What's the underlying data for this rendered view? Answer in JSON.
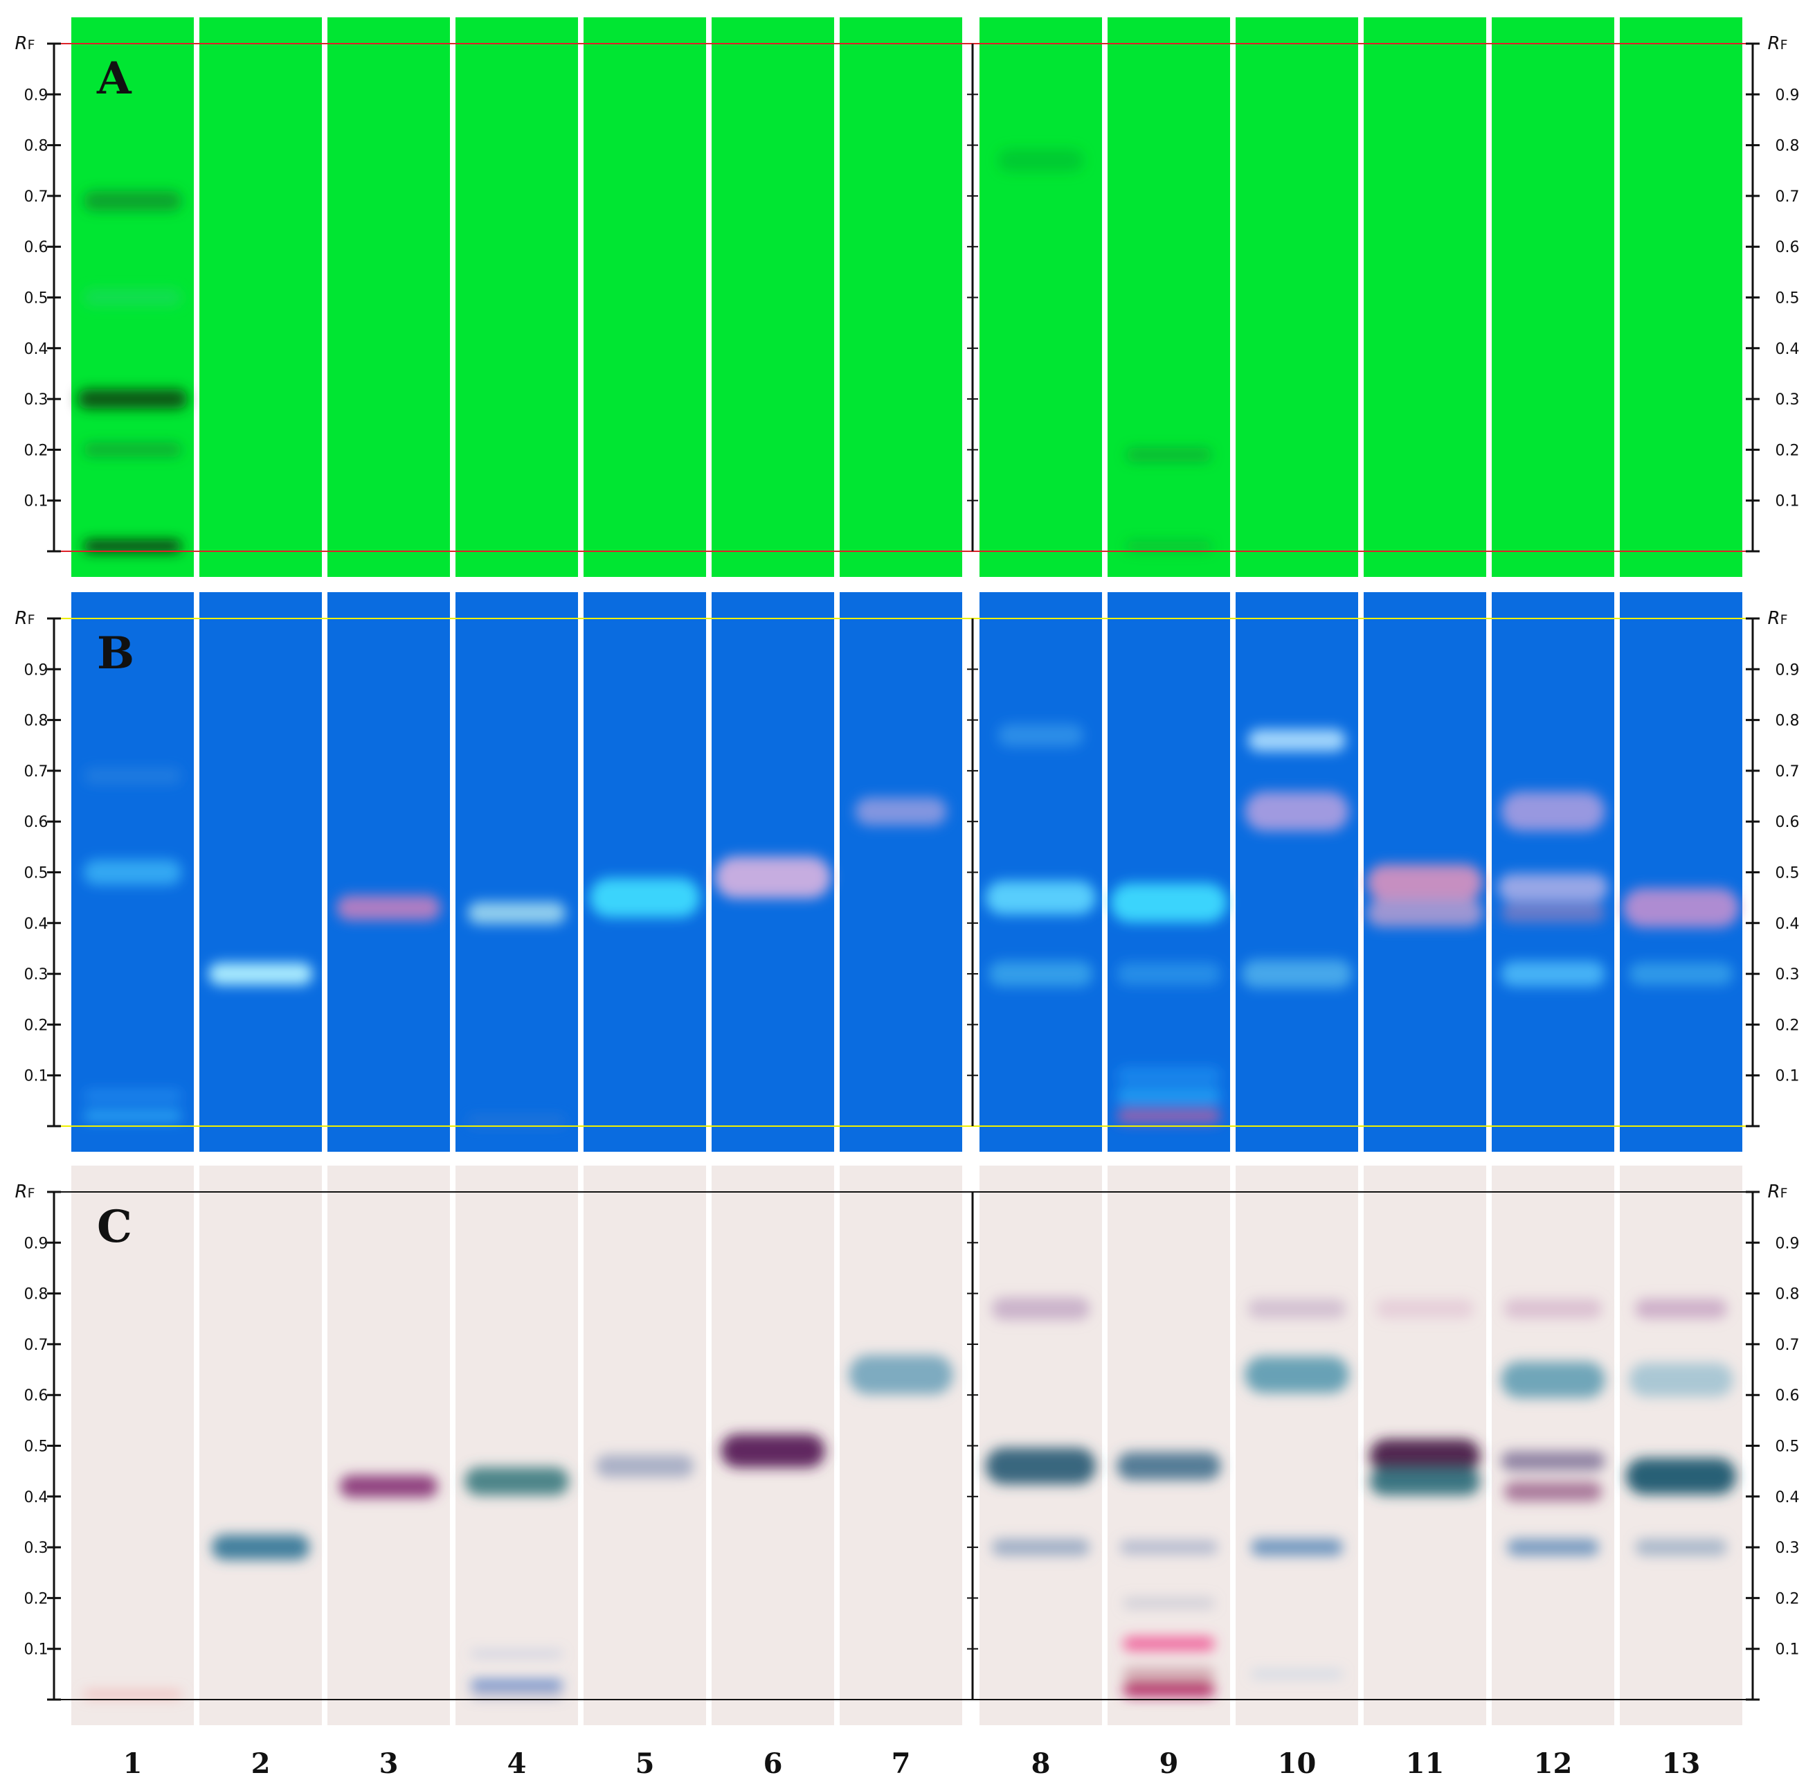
{
  "figure": {
    "lanes": [
      "1",
      "2",
      "3",
      "4",
      "5",
      "6",
      "7",
      "8",
      "9",
      "10",
      "11",
      "12",
      "13"
    ],
    "axis": {
      "title_main": "R",
      "title_sub": "F",
      "ticks": [
        "0.9",
        "0.8",
        "0.7",
        "0.6",
        "0.5",
        "0.4",
        "0.3",
        "0.2",
        "0.1"
      ]
    },
    "panels": [
      {
        "letter": "A",
        "background": "#00e632",
        "line_color": "#e0202a",
        "bands": [
          {
            "lane": 1,
            "rf": 0.01,
            "color": "#0a2a0a",
            "opacity": 0.9,
            "w": 0.8,
            "h": 0.022
          },
          {
            "lane": 1,
            "rf": 0.3,
            "color": "#0a3a0a",
            "opacity": 0.85,
            "w": 0.9,
            "h": 0.035
          },
          {
            "lane": 1,
            "rf": 0.2,
            "color": "#1a7a30",
            "opacity": 0.5,
            "w": 0.8,
            "h": 0.025
          },
          {
            "lane": 1,
            "rf": 0.5,
            "color": "#30d080",
            "opacity": 0.4,
            "w": 0.8,
            "h": 0.03
          },
          {
            "lane": 1,
            "rf": 0.69,
            "color": "#1a6a2a",
            "opacity": 0.55,
            "w": 0.8,
            "h": 0.035
          },
          {
            "lane": 8,
            "rf": 0.77,
            "color": "#10a030",
            "opacity": 0.4,
            "w": 0.7,
            "h": 0.04
          },
          {
            "lane": 9,
            "rf": 0.19,
            "color": "#108030",
            "opacity": 0.45,
            "w": 0.7,
            "h": 0.025
          },
          {
            "lane": 9,
            "rf": 0.01,
            "color": "#108030",
            "opacity": 0.35,
            "w": 0.7,
            "h": 0.02
          }
        ]
      },
      {
        "letter": "B",
        "background": "#0a6ce0",
        "line_color": "#f0f000",
        "bands": [
          {
            "lane": 1,
            "rf": 0.02,
            "color": "#40c8ff",
            "opacity": 0.6,
            "w": 0.8,
            "h": 0.02
          },
          {
            "lane": 1,
            "rf": 0.06,
            "color": "#40b0ff",
            "opacity": 0.4,
            "w": 0.8,
            "h": 0.02
          },
          {
            "lane": 1,
            "rf": 0.5,
            "color": "#50d0ff",
            "opacity": 0.6,
            "w": 0.8,
            "h": 0.045
          },
          {
            "lane": 1,
            "rf": 0.69,
            "color": "#4090e0",
            "opacity": 0.4,
            "w": 0.8,
            "h": 0.03
          },
          {
            "lane": 2,
            "rf": 0.3,
            "color": "#b0f0ff",
            "opacity": 0.95,
            "w": 0.85,
            "h": 0.04
          },
          {
            "lane": 3,
            "rf": 0.43,
            "color": "#c080c0",
            "opacity": 0.9,
            "w": 0.85,
            "h": 0.045
          },
          {
            "lane": 4,
            "rf": 0.42,
            "color": "#a0d8f0",
            "opacity": 0.9,
            "w": 0.8,
            "h": 0.04
          },
          {
            "lane": 4,
            "rf": 0.01,
            "color": "#4080d0",
            "opacity": 0.4,
            "w": 0.8,
            "h": 0.02
          },
          {
            "lane": 5,
            "rf": 0.45,
            "color": "#40e0ff",
            "opacity": 0.9,
            "w": 0.9,
            "h": 0.07
          },
          {
            "lane": 6,
            "rf": 0.49,
            "color": "#d0b0e0",
            "opacity": 0.95,
            "w": 0.95,
            "h": 0.075
          },
          {
            "lane": 7,
            "rf": 0.62,
            "color": "#a0a0e0",
            "opacity": 0.8,
            "w": 0.75,
            "h": 0.05
          },
          {
            "lane": 8,
            "rf": 0.45,
            "color": "#60d8ff",
            "opacity": 0.9,
            "w": 0.9,
            "h": 0.06
          },
          {
            "lane": 8,
            "rf": 0.3,
            "color": "#50c0f0",
            "opacity": 0.6,
            "w": 0.85,
            "h": 0.045
          },
          {
            "lane": 8,
            "rf": 0.77,
            "color": "#50b0f0",
            "opacity": 0.5,
            "w": 0.7,
            "h": 0.04
          },
          {
            "lane": 9,
            "rf": 0.44,
            "color": "#40e0ff",
            "opacity": 0.9,
            "w": 0.95,
            "h": 0.07
          },
          {
            "lane": 9,
            "rf": 0.3,
            "color": "#40b0f0",
            "opacity": 0.5,
            "w": 0.85,
            "h": 0.04
          },
          {
            "lane": 9,
            "rf": 0.02,
            "color": "#c060a0",
            "opacity": 0.8,
            "w": 0.85,
            "h": 0.025
          },
          {
            "lane": 9,
            "rf": 0.06,
            "color": "#30c0ff",
            "opacity": 0.6,
            "w": 0.85,
            "h": 0.025
          },
          {
            "lane": 9,
            "rf": 0.1,
            "color": "#30b0ff",
            "opacity": 0.4,
            "w": 0.85,
            "h": 0.03
          },
          {
            "lane": 10,
            "rf": 0.76,
            "color": "#b0e0ff",
            "opacity": 0.9,
            "w": 0.8,
            "h": 0.04
          },
          {
            "lane": 10,
            "rf": 0.62,
            "color": "#b0a0e0",
            "opacity": 0.9,
            "w": 0.85,
            "h": 0.07
          },
          {
            "lane": 10,
            "rf": 0.3,
            "color": "#60c0f0",
            "opacity": 0.7,
            "w": 0.9,
            "h": 0.05
          },
          {
            "lane": 11,
            "rf": 0.48,
            "color": "#d090c0",
            "opacity": 0.95,
            "w": 0.95,
            "h": 0.065
          },
          {
            "lane": 11,
            "rf": 0.42,
            "color": "#c0a0d0",
            "opacity": 0.8,
            "w": 0.95,
            "h": 0.05
          },
          {
            "lane": 12,
            "rf": 0.62,
            "color": "#b0a0e0",
            "opacity": 0.85,
            "w": 0.85,
            "h": 0.07
          },
          {
            "lane": 12,
            "rf": 0.47,
            "color": "#b0b0e8",
            "opacity": 0.85,
            "w": 0.9,
            "h": 0.05
          },
          {
            "lane": 12,
            "rf": 0.42,
            "color": "#9080c0",
            "opacity": 0.7,
            "w": 0.85,
            "h": 0.035
          },
          {
            "lane": 12,
            "rf": 0.3,
            "color": "#60d0ff",
            "opacity": 0.7,
            "w": 0.85,
            "h": 0.045
          },
          {
            "lane": 13,
            "rf": 0.43,
            "color": "#c090d0",
            "opacity": 0.9,
            "w": 0.95,
            "h": 0.07
          },
          {
            "lane": 13,
            "rf": 0.3,
            "color": "#50c0f0",
            "opacity": 0.55,
            "w": 0.85,
            "h": 0.04
          }
        ]
      },
      {
        "letter": "C",
        "background": "#f1e9e7",
        "line_color": "#111111",
        "bands": [
          {
            "lane": 1,
            "rf": 0.01,
            "color": "#f0a0a0",
            "opacity": 0.7,
            "w": 0.8,
            "h": 0.012
          },
          {
            "lane": 2,
            "rf": 0.3,
            "color": "#3a7a9a",
            "opacity": 0.95,
            "w": 0.8,
            "h": 0.045
          },
          {
            "lane": 3,
            "rf": 0.42,
            "color": "#8a3a7a",
            "opacity": 0.95,
            "w": 0.8,
            "h": 0.04
          },
          {
            "lane": 4,
            "rf": 0.43,
            "color": "#3a7a80",
            "opacity": 0.9,
            "w": 0.85,
            "h": 0.05
          },
          {
            "lane": 4,
            "rf": 0.03,
            "color": "#4070c0",
            "opacity": 0.85,
            "w": 0.75,
            "h": 0.015
          },
          {
            "lane": 4,
            "rf": 0.01,
            "color": "#7080b0",
            "opacity": 0.5,
            "w": 0.75,
            "h": 0.012
          },
          {
            "lane": 4,
            "rf": 0.09,
            "color": "#80a0d0",
            "opacity": 0.35,
            "w": 0.75,
            "h": 0.012
          },
          {
            "lane": 5,
            "rf": 0.46,
            "color": "#7a8ab0",
            "opacity": 0.6,
            "w": 0.8,
            "h": 0.04
          },
          {
            "lane": 6,
            "rf": 0.49,
            "color": "#5a1f5a",
            "opacity": 0.95,
            "w": 0.85,
            "h": 0.06
          },
          {
            "lane": 7,
            "rf": 0.64,
            "color": "#6aa0b8",
            "opacity": 0.85,
            "w": 0.85,
            "h": 0.07
          },
          {
            "lane": 8,
            "rf": 0.46,
            "color": "#2f5f78",
            "opacity": 0.95,
            "w": 0.9,
            "h": 0.065
          },
          {
            "lane": 8,
            "rf": 0.3,
            "color": "#6a88b0",
            "opacity": 0.6,
            "w": 0.8,
            "h": 0.03
          },
          {
            "lane": 8,
            "rf": 0.77,
            "color": "#b090b8",
            "opacity": 0.6,
            "w": 0.8,
            "h": 0.04
          },
          {
            "lane": 9,
            "rf": 0.46,
            "color": "#3a6a88",
            "opacity": 0.85,
            "w": 0.85,
            "h": 0.05
          },
          {
            "lane": 9,
            "rf": 0.3,
            "color": "#7a90b8",
            "opacity": 0.5,
            "w": 0.8,
            "h": 0.025
          },
          {
            "lane": 9,
            "rf": 0.19,
            "color": "#a0a8c0",
            "opacity": 0.4,
            "w": 0.75,
            "h": 0.02
          },
          {
            "lane": 9,
            "rf": 0.11,
            "color": "#f05090",
            "opacity": 0.85,
            "w": 0.75,
            "h": 0.025
          },
          {
            "lane": 9,
            "rf": 0.05,
            "color": "#c08090",
            "opacity": 0.6,
            "w": 0.75,
            "h": 0.025
          },
          {
            "lane": 9,
            "rf": 0.02,
            "color": "#b02060",
            "opacity": 0.95,
            "w": 0.75,
            "h": 0.025
          },
          {
            "lane": 10,
            "rf": 0.64,
            "color": "#5a9ab0",
            "opacity": 0.9,
            "w": 0.85,
            "h": 0.065
          },
          {
            "lane": 10,
            "rf": 0.3,
            "color": "#5a88b8",
            "opacity": 0.85,
            "w": 0.75,
            "h": 0.03
          },
          {
            "lane": 10,
            "rf": 0.77,
            "color": "#b090b8",
            "opacity": 0.45,
            "w": 0.8,
            "h": 0.035
          },
          {
            "lane": 10,
            "rf": 0.05,
            "color": "#a0c0e0",
            "opacity": 0.4,
            "w": 0.75,
            "h": 0.015
          },
          {
            "lane": 11,
            "rf": 0.48,
            "color": "#4a1a4a",
            "opacity": 0.95,
            "w": 0.9,
            "h": 0.06
          },
          {
            "lane": 11,
            "rf": 0.43,
            "color": "#2a6a78",
            "opacity": 0.9,
            "w": 0.9,
            "h": 0.05
          },
          {
            "lane": 11,
            "rf": 0.77,
            "color": "#d0a0c0",
            "opacity": 0.35,
            "w": 0.8,
            "h": 0.035
          },
          {
            "lane": 12,
            "rf": 0.63,
            "color": "#5a9ab0",
            "opacity": 0.85,
            "w": 0.85,
            "h": 0.065
          },
          {
            "lane": 12,
            "rf": 0.47,
            "color": "#6a5a88",
            "opacity": 0.7,
            "w": 0.85,
            "h": 0.035
          },
          {
            "lane": 12,
            "rf": 0.41,
            "color": "#8a4a7a",
            "opacity": 0.7,
            "w": 0.8,
            "h": 0.035
          },
          {
            "lane": 12,
            "rf": 0.3,
            "color": "#5a88b8",
            "opacity": 0.8,
            "w": 0.75,
            "h": 0.03
          },
          {
            "lane": 12,
            "rf": 0.77,
            "color": "#c090b8",
            "opacity": 0.45,
            "w": 0.8,
            "h": 0.035
          },
          {
            "lane": 13,
            "rf": 0.44,
            "color": "#1f5a70",
            "opacity": 0.95,
            "w": 0.9,
            "h": 0.065
          },
          {
            "lane": 13,
            "rf": 0.63,
            "color": "#7ab0c8",
            "opacity": 0.6,
            "w": 0.85,
            "h": 0.06
          },
          {
            "lane": 13,
            "rf": 0.3,
            "color": "#7a98b8",
            "opacity": 0.6,
            "w": 0.75,
            "h": 0.03
          },
          {
            "lane": 13,
            "rf": 0.77,
            "color": "#b080b0",
            "opacity": 0.55,
            "w": 0.75,
            "h": 0.035
          }
        ]
      }
    ]
  }
}
